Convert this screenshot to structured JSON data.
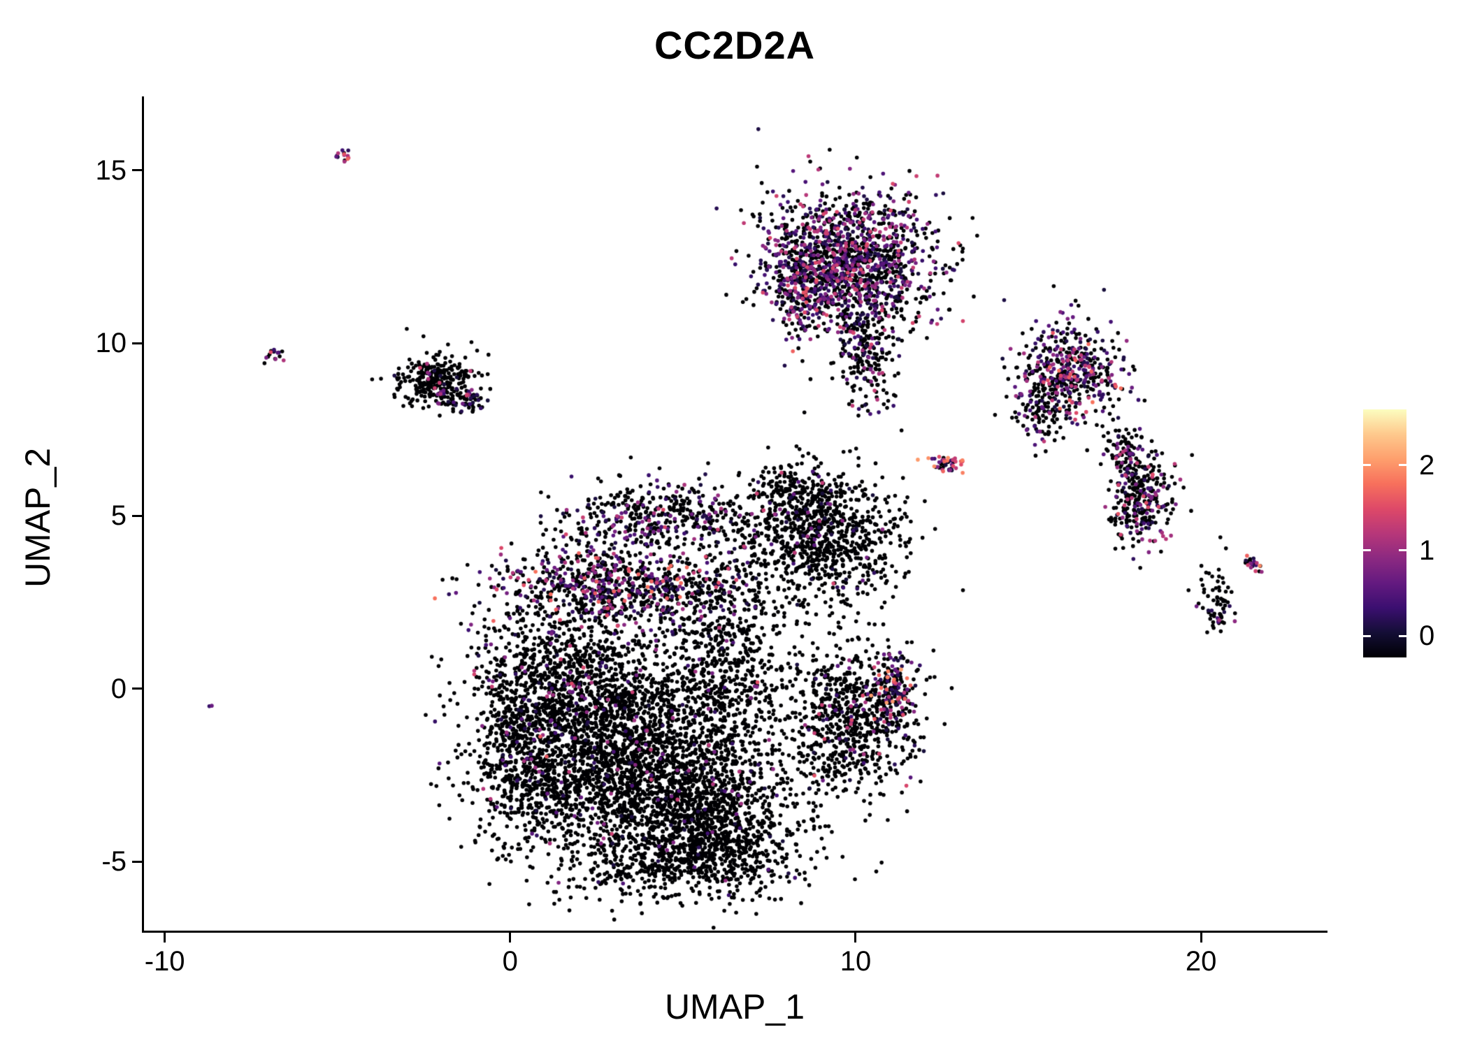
{
  "title": "CC2D2A",
  "axes": {
    "x_label": "UMAP_1",
    "y_label": "UMAP_2",
    "x_ticks": [
      -10,
      0,
      10,
      20
    ],
    "y_ticks": [
      -5,
      0,
      5,
      10,
      15
    ]
  },
  "colorbar": {
    "tick_labels": [
      0,
      1,
      2
    ]
  },
  "chart_data": {
    "type": "scatter",
    "title": "CC2D2A",
    "xlabel": "UMAP_1",
    "ylabel": "UMAP_2",
    "xlim": [
      -10.6,
      23.6
    ],
    "ylim": [
      -7.0,
      17.1
    ],
    "x_ticks": [
      -10,
      0,
      10,
      20
    ],
    "y_ticks": [
      -5,
      0,
      5,
      10,
      15
    ],
    "grid": false,
    "legend_position": "right",
    "colormap": "magma",
    "colormap_stops": [
      [
        0.0,
        "#000004"
      ],
      [
        0.1,
        "#140e36"
      ],
      [
        0.2,
        "#3b0f70"
      ],
      [
        0.3,
        "#641a80"
      ],
      [
        0.4,
        "#8c2981"
      ],
      [
        0.5,
        "#b73779"
      ],
      [
        0.6,
        "#de4968"
      ],
      [
        0.7,
        "#f7705c"
      ],
      [
        0.8,
        "#fe9f6d"
      ],
      [
        0.9,
        "#fec98d"
      ],
      [
        1.0,
        "#fcfdbf"
      ]
    ],
    "color_value_range": [
      0,
      2.65
    ],
    "colorbar_domain": [
      -0.25,
      2.65
    ],
    "colorbar_ticks": [
      0,
      1,
      2
    ],
    "point_radius_px": 2.8,
    "point_count_total": 12200,
    "description": "UMAP embedding of single cells colored by CC2D2A expression; majority of cells near zero (black), scattered expressing cells purple to orange.",
    "clusters": [
      {
        "name": "main-body-core",
        "cx": 3.6,
        "cy": -2.2,
        "sx": 2.0,
        "sy": 1.5,
        "n": 2600,
        "frac_expressed": 0.04,
        "expr_scale": 1.2
      },
      {
        "name": "main-body-bottom",
        "cx": 5.8,
        "cy": -4.0,
        "sx": 1.3,
        "sy": 0.9,
        "n": 800,
        "frac_expressed": 0.03,
        "expr_scale": 1.0
      },
      {
        "name": "main-body-bottom-edge",
        "cx": 5.0,
        "cy": -5.1,
        "sx": 1.7,
        "sy": 0.45,
        "n": 320,
        "frac_expressed": 0.02,
        "expr_scale": 1.0
      },
      {
        "name": "main-body-left",
        "cx": 1.8,
        "cy": 0.3,
        "sx": 1.4,
        "sy": 1.4,
        "n": 1000,
        "frac_expressed": 0.09,
        "expr_scale": 1.4
      },
      {
        "name": "main-body-left-edge",
        "cx": 0.3,
        "cy": -1.5,
        "sx": 0.7,
        "sy": 1.3,
        "n": 480,
        "frac_expressed": 0.12,
        "expr_scale": 1.5
      },
      {
        "name": "main-top-band",
        "cx": 3.2,
        "cy": 3.0,
        "sx": 1.9,
        "sy": 0.55,
        "n": 700,
        "frac_expressed": 0.38,
        "expr_scale": 1.6
      },
      {
        "name": "main-top-dome",
        "cx": 4.3,
        "cy": 5.0,
        "sx": 1.4,
        "sy": 0.5,
        "n": 420,
        "frac_expressed": 0.3,
        "expr_scale": 1.3
      },
      {
        "name": "main-right-bridge",
        "cx": 6.3,
        "cy": 1.0,
        "sx": 0.9,
        "sy": 1.6,
        "n": 600,
        "frac_expressed": 0.06,
        "expr_scale": 1.2
      },
      {
        "name": "mid-right-lobe",
        "cx": 9.0,
        "cy": 4.4,
        "sx": 1.15,
        "sy": 0.95,
        "n": 900,
        "frac_expressed": 0.05,
        "expr_scale": 1.2
      },
      {
        "name": "mid-right-lobe-arm",
        "cx": 8.2,
        "cy": 5.7,
        "sx": 0.5,
        "sy": 0.4,
        "n": 130,
        "frac_expressed": 0.08,
        "expr_scale": 1.2
      },
      {
        "name": "lower-right-lobe",
        "cx": 9.8,
        "cy": -0.9,
        "sx": 1.0,
        "sy": 1.1,
        "n": 750,
        "frac_expressed": 0.08,
        "expr_scale": 1.4
      },
      {
        "name": "lower-right-lobe-edge",
        "cx": 11.1,
        "cy": -0.1,
        "sx": 0.35,
        "sy": 0.6,
        "n": 160,
        "frac_expressed": 0.55,
        "expr_scale": 1.9
      },
      {
        "name": "top-center-cluster",
        "cx": 9.7,
        "cy": 12.4,
        "sx": 1.25,
        "sy": 1.0,
        "n": 1500,
        "frac_expressed": 0.45,
        "expr_scale": 1.3
      },
      {
        "name": "top-center-tail",
        "cx": 10.3,
        "cy": 9.8,
        "sx": 0.45,
        "sy": 0.8,
        "n": 220,
        "frac_expressed": 0.25,
        "expr_scale": 1.2
      },
      {
        "name": "top-center-left-arm",
        "cx": 8.5,
        "cy": 11.4,
        "sx": 0.3,
        "sy": 0.55,
        "n": 130,
        "frac_expressed": 0.6,
        "expr_scale": 1.5
      },
      {
        "name": "right-upper-cluster",
        "cx": 16.3,
        "cy": 9.2,
        "sx": 0.75,
        "sy": 0.65,
        "n": 450,
        "frac_expressed": 0.5,
        "expr_scale": 1.6
      },
      {
        "name": "right-upper-tail",
        "cx": 15.3,
        "cy": 8.1,
        "sx": 0.35,
        "sy": 0.5,
        "n": 110,
        "frac_expressed": 0.2,
        "expr_scale": 1.3
      },
      {
        "name": "right-mid-cluster",
        "cx": 18.2,
        "cy": 5.6,
        "sx": 0.45,
        "sy": 0.75,
        "n": 320,
        "frac_expressed": 0.28,
        "expr_scale": 1.4
      },
      {
        "name": "right-mid-cluster-top",
        "cx": 17.8,
        "cy": 6.9,
        "sx": 0.3,
        "sy": 0.35,
        "n": 70,
        "frac_expressed": 0.2,
        "expr_scale": 1.2
      },
      {
        "name": "center-right-streak",
        "cx": 12.6,
        "cy": 6.5,
        "sx": 0.28,
        "sy": 0.12,
        "n": 45,
        "frac_expressed": 0.75,
        "expr_scale": 2.0
      },
      {
        "name": "far-right-small",
        "cx": 20.4,
        "cy": 2.4,
        "sx": 0.3,
        "sy": 0.55,
        "n": 70,
        "frac_expressed": 0.12,
        "expr_scale": 1.2
      },
      {
        "name": "far-right-streak",
        "cx": 21.5,
        "cy": 3.6,
        "sx": 0.2,
        "sy": 0.12,
        "n": 25,
        "frac_expressed": 0.55,
        "expr_scale": 1.7
      },
      {
        "name": "left-cluster",
        "cx": -2.1,
        "cy": 8.9,
        "sx": 0.55,
        "sy": 0.4,
        "n": 300,
        "frac_expressed": 0.06,
        "expr_scale": 1.2
      },
      {
        "name": "left-cluster-tip",
        "cx": -1.2,
        "cy": 8.35,
        "sx": 0.25,
        "sy": 0.2,
        "n": 50,
        "frac_expressed": 0.45,
        "expr_scale": 1.5
      },
      {
        "name": "tiny-streak-left",
        "cx": -6.8,
        "cy": 9.65,
        "sx": 0.13,
        "sy": 0.1,
        "n": 16,
        "frac_expressed": 0.7,
        "expr_scale": 1.5
      },
      {
        "name": "tiny-streak-top-left",
        "cx": -4.8,
        "cy": 15.4,
        "sx": 0.13,
        "sy": 0.1,
        "n": 14,
        "frac_expressed": 0.75,
        "expr_scale": 1.6
      },
      {
        "name": "isolated-dot-left",
        "cx": -8.7,
        "cy": -0.45,
        "sx": 0.05,
        "sy": 0.05,
        "n": 2,
        "frac_expressed": 1.0,
        "expr_scale": 0.8
      }
    ]
  }
}
